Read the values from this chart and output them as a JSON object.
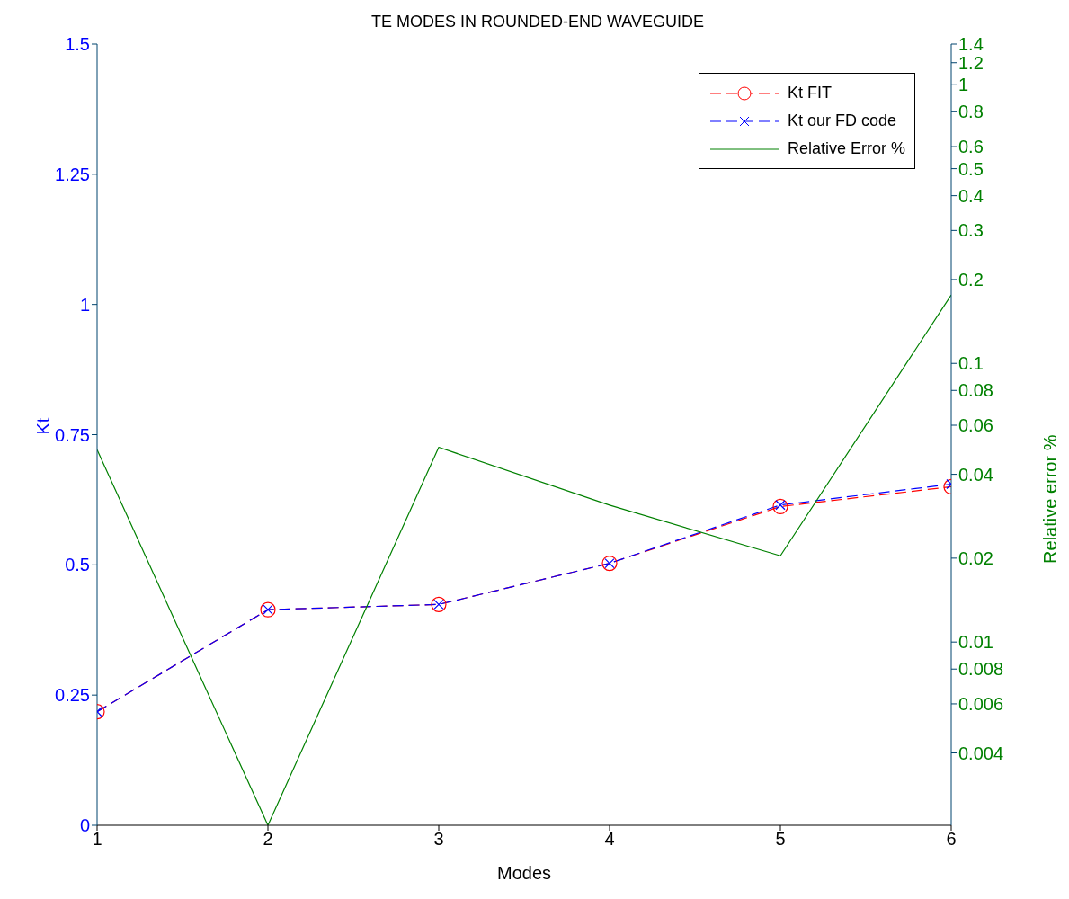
{
  "chart_data": {
    "type": "line",
    "title": "TE MODES IN ROUNDED-END WAVEGUIDE",
    "xlabel": "Modes",
    "ylabel": "Kt",
    "y2label": "Relative error %",
    "x": [
      1,
      2,
      3,
      4,
      5,
      6
    ],
    "series": [
      {
        "name": "Kt FIT",
        "color": "#ff0000",
        "values": [
          0.218,
          0.414,
          0.424,
          0.503,
          0.612,
          0.65
        ],
        "marker": "circle",
        "line_style": "dashed"
      },
      {
        "name": "Kt our FD code",
        "color": "#0000ff",
        "values": [
          0.218,
          0.414,
          0.424,
          0.503,
          0.615,
          0.655
        ],
        "marker": "cross",
        "line_style": "dashed"
      },
      {
        "name": "Relative Error %",
        "color": "#008000",
        "values": [
          0.049,
          0.0022,
          0.05,
          0.031,
          0.0204,
          0.176
        ],
        "marker": "none",
        "line_style": "solid",
        "axis": "y2"
      }
    ],
    "xlim": [
      1,
      6
    ],
    "xticks": [
      1,
      2,
      3,
      4,
      5,
      6
    ],
    "ylim": [
      0,
      1.5
    ],
    "yticks": [
      0,
      0.25,
      0.5,
      0.75,
      1,
      1.25,
      1.5
    ],
    "y2lim": [
      0.0022,
      1.4
    ],
    "y2ticks": [
      0.004,
      0.006,
      0.008,
      0.01,
      0.02,
      0.04,
      0.06,
      0.08,
      0.1,
      0.2,
      0.3,
      0.4,
      0.5,
      0.6,
      0.8,
      1,
      1.2,
      1.4
    ],
    "log": "y2",
    "grid": false,
    "legend": "top right"
  }
}
